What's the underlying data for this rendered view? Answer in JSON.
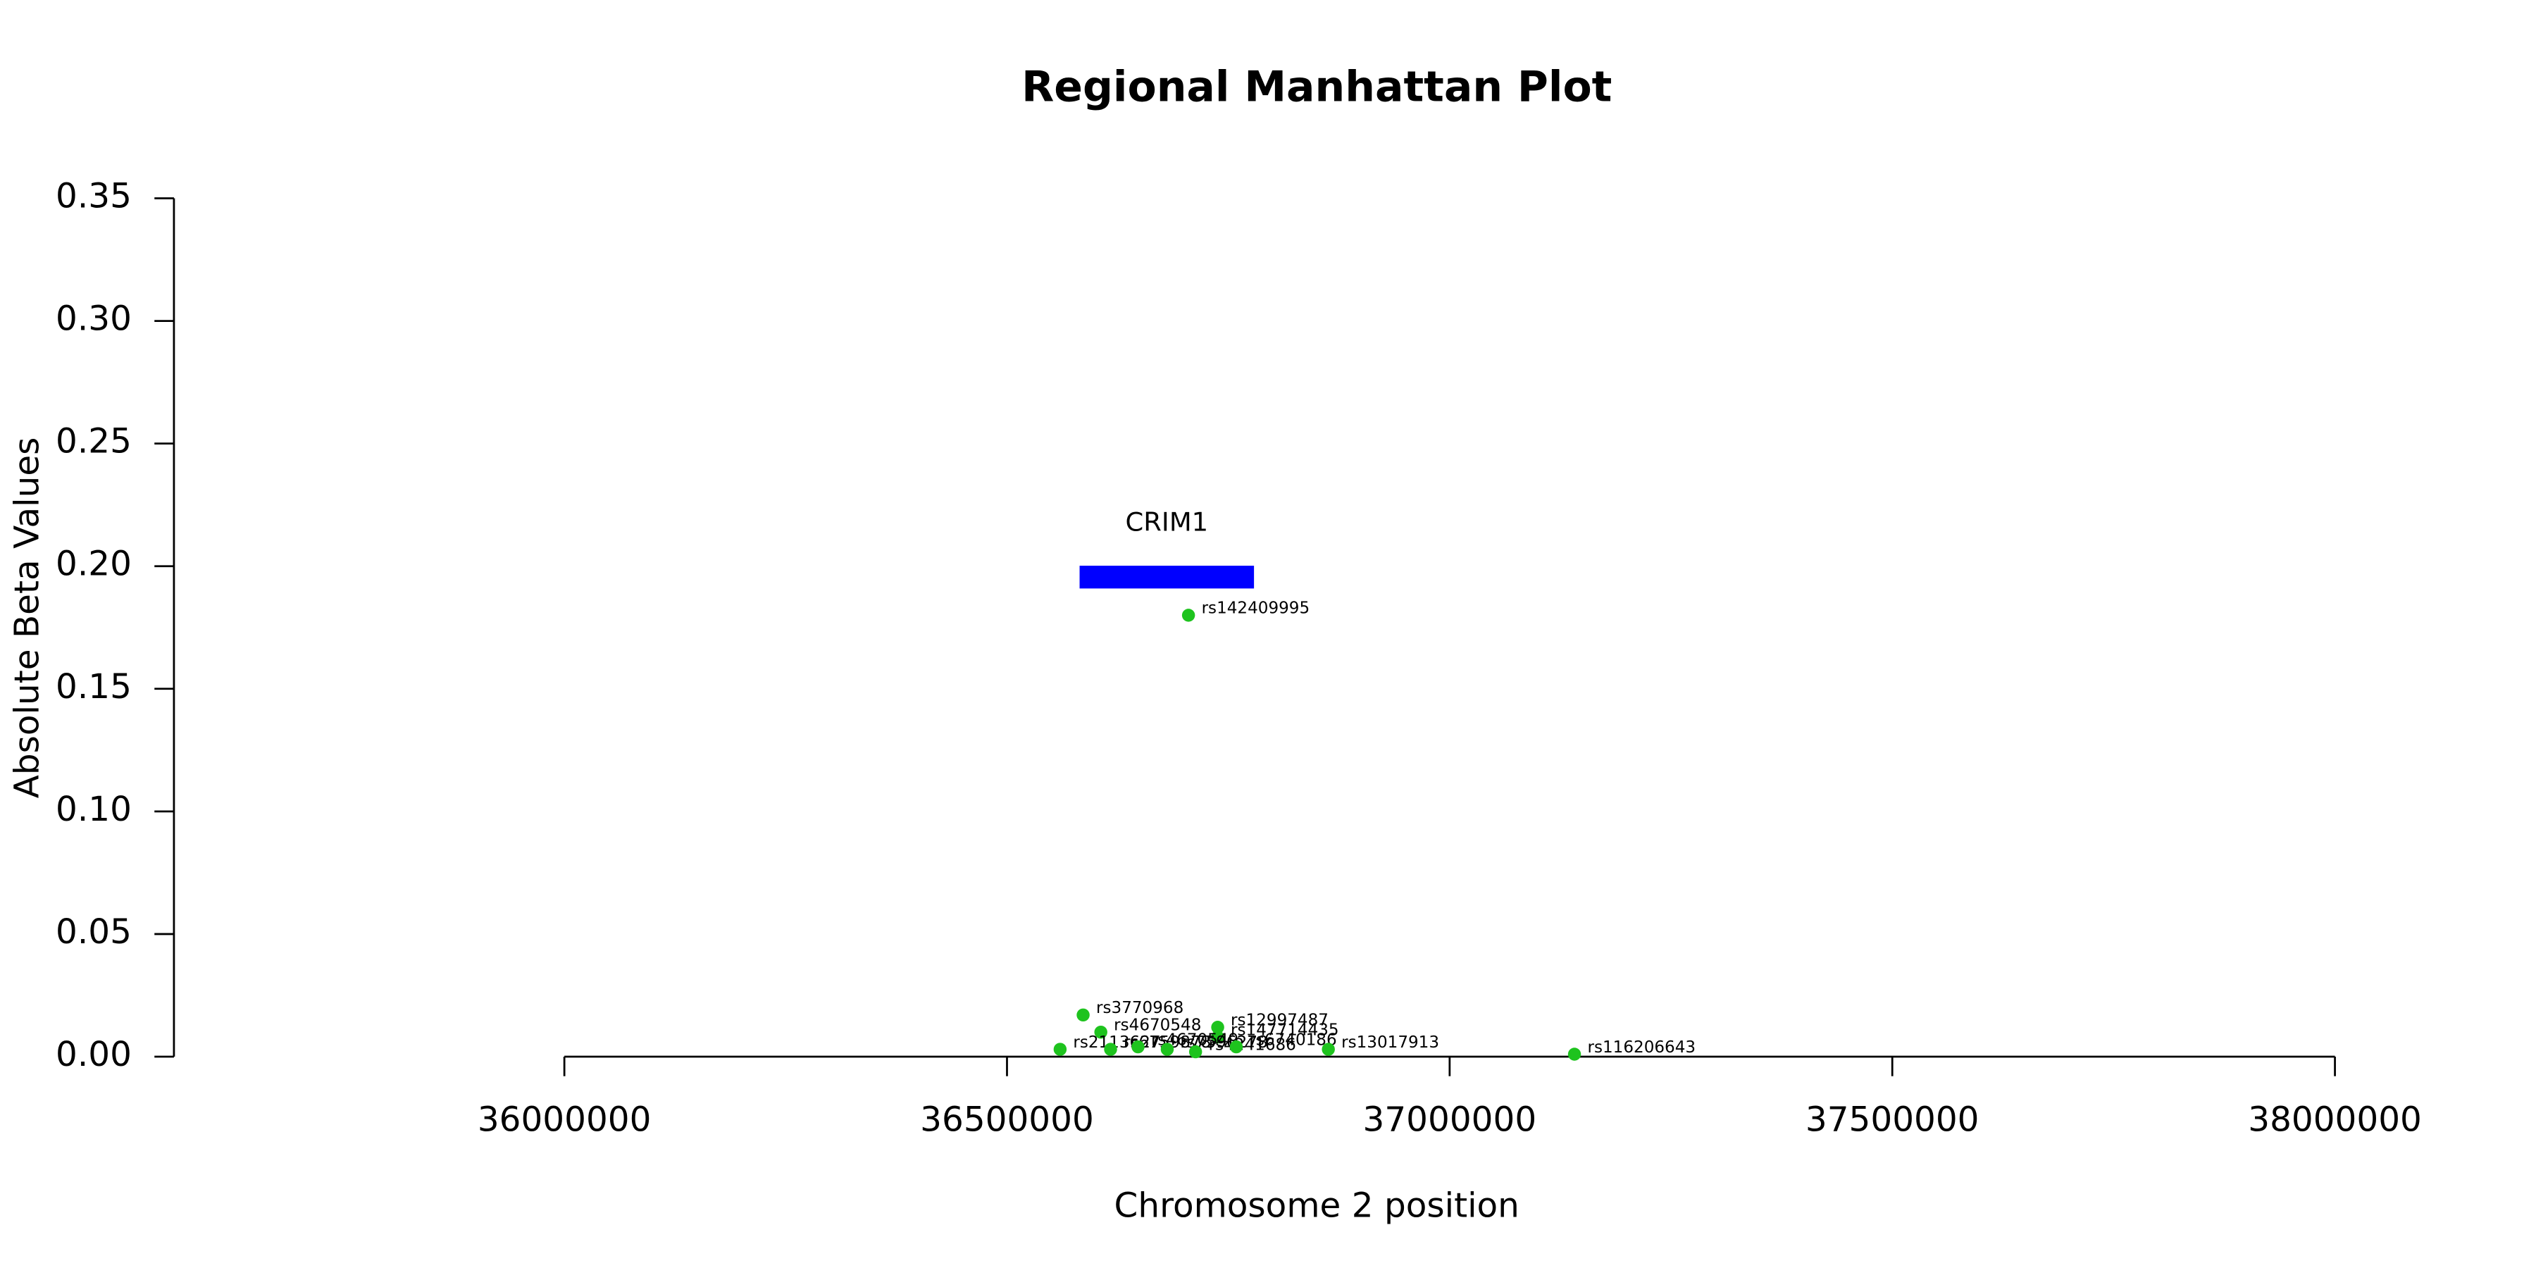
{
  "chart_data": {
    "type": "scatter",
    "title": "Regional Manhattan Plot",
    "x_label": "Chromosome 2 position",
    "y_label": "Absolute Beta Values",
    "xlim": [
      35559000,
      38150000
    ],
    "xticks": [
      36000000,
      36500000,
      37000000,
      37500000,
      38000000
    ],
    "ylim": [
      0,
      0.35
    ],
    "yticks": [
      {
        "value": 0,
        "label": "0.00"
      },
      {
        "value": 0.05,
        "label": "0.05"
      },
      {
        "value": 0.1,
        "label": "0.10"
      },
      {
        "value": 0.15,
        "label": "0.15"
      },
      {
        "value": 0.2,
        "label": "0.20"
      },
      {
        "value": 0.25,
        "label": "0.25"
      },
      {
        "value": 0.3,
        "label": "0.30"
      },
      {
        "value": 0.35,
        "label": "0.35"
      }
    ],
    "point_color": "#1ec31e",
    "point_labels": [
      "rs3770968",
      "rs4670548",
      "rs12997487",
      "rs147714435",
      "rs142409995",
      "rs2113627",
      "rs6759878",
      "rs4670549",
      "rs7596278",
      "rs4241686",
      "rs6740186",
      "rs13017913",
      "rs116206643"
    ],
    "x": [
      36586000,
      36606000,
      36738000,
      36738000,
      36705000,
      36560000,
      36617000,
      36648000,
      36681000,
      36713000,
      36759000,
      36863000,
      37141000
    ],
    "y": [
      0.017,
      0.01,
      0.012,
      0.008,
      0.18,
      0.003,
      0.003,
      0.004,
      0.003,
      0.002,
      0.004,
      0.003,
      0.001
    ],
    "genes": [
      {
        "name": "CRIM1",
        "start": 36582000,
        "end": 36779000,
        "color": "#0000ff"
      }
    ]
  }
}
